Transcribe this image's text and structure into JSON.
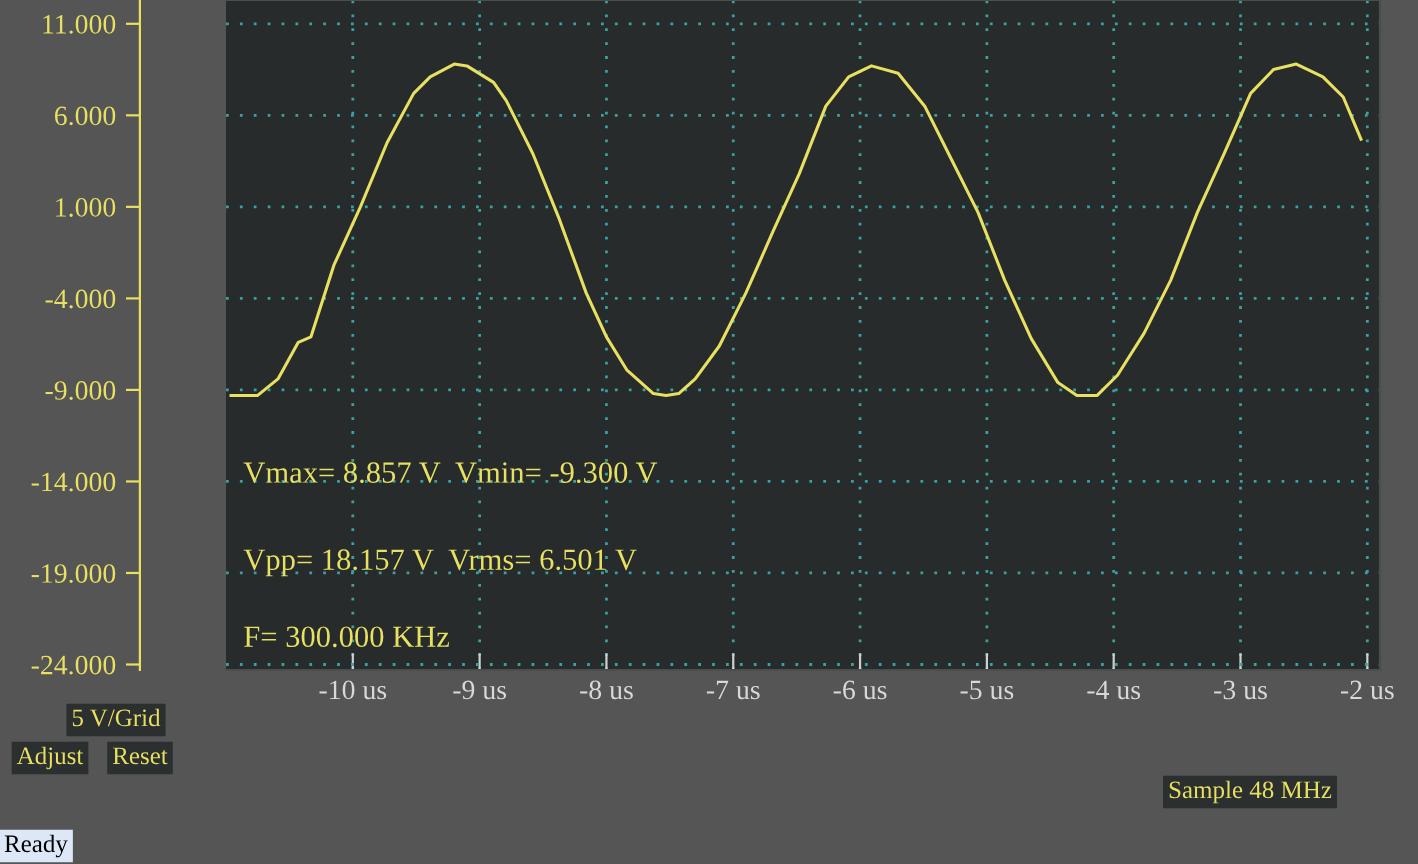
{
  "chart_data": {
    "type": "line",
    "xlim": [
      -11,
      -1.9
    ],
    "ylim": [
      -24.3,
      12.3
    ],
    "xticks": [
      {
        "value": -10,
        "label": "-10 us"
      },
      {
        "value": -9,
        "label": "-9 us"
      },
      {
        "value": -8,
        "label": "-8 us"
      },
      {
        "value": -7,
        "label": "-7 us"
      },
      {
        "value": -6,
        "label": "-6 us"
      },
      {
        "value": -5,
        "label": "-5 us"
      },
      {
        "value": -4,
        "label": "-4 us"
      },
      {
        "value": -3,
        "label": "-3 us"
      },
      {
        "value": -2,
        "label": "-2 us"
      }
    ],
    "yticks": [
      {
        "value": 11,
        "label": "11.000"
      },
      {
        "value": 6,
        "label": "6.000"
      },
      {
        "value": 1,
        "label": "1.000"
      },
      {
        "value": -4,
        "label": "-4.000"
      },
      {
        "value": -9,
        "label": "-9.000"
      },
      {
        "value": -14,
        "label": "-14.000"
      },
      {
        "value": -19,
        "label": "-19.000"
      },
      {
        "value": -24,
        "label": "-24.000"
      }
    ],
    "grid": true,
    "marker": "none",
    "line_style": "solid",
    "series": [
      {
        "color": "#e8e060",
        "x": [
          -10.96,
          -10.75,
          -10.59,
          -10.43,
          -10.33,
          -10.15,
          -9.94,
          -9.73,
          -9.52,
          -9.39,
          -9.2,
          -9.1,
          -8.89,
          -8.79,
          -8.58,
          -8.37,
          -8.16,
          -8.0,
          -7.84,
          -7.63,
          -7.53,
          -7.43,
          -7.3,
          -7.11,
          -6.9,
          -6.69,
          -6.48,
          -6.27,
          -6.09,
          -5.91,
          -5.7,
          -5.49,
          -5.28,
          -5.07,
          -4.86,
          -4.65,
          -4.44,
          -4.29,
          -4.13,
          -3.97,
          -3.76,
          -3.55,
          -3.34,
          -3.13,
          -2.92,
          -2.74,
          -2.56,
          -2.35,
          -2.19,
          -2.05
        ],
        "values": [
          -9.3,
          -9.3,
          -8.4,
          -6.4,
          -6.1,
          -2.2,
          1.0,
          4.5,
          7.2,
          8.1,
          8.8,
          8.7,
          7.8,
          6.8,
          3.9,
          0.3,
          -3.7,
          -6.1,
          -7.9,
          -9.2,
          -9.3,
          -9.2,
          -8.4,
          -6.6,
          -3.7,
          -0.4,
          2.8,
          6.5,
          8.1,
          8.7,
          8.3,
          6.5,
          3.6,
          0.7,
          -3.0,
          -6.2,
          -8.6,
          -9.3,
          -9.3,
          -8.2,
          -5.9,
          -3.0,
          0.7,
          3.9,
          7.2,
          8.5,
          8.8,
          8.1,
          7.0,
          4.7
        ]
      }
    ],
    "annotations": [
      "Vmax= 8.857 V  Vmin= -9.300 V",
      "Vpp= 18.157 V  Vrms= 6.501 V",
      "F= 300.000 KHz",
      "5 V/Grid",
      "Adjust",
      "Reset",
      "Sample 48 MHz",
      "Ready"
    ]
  }
}
